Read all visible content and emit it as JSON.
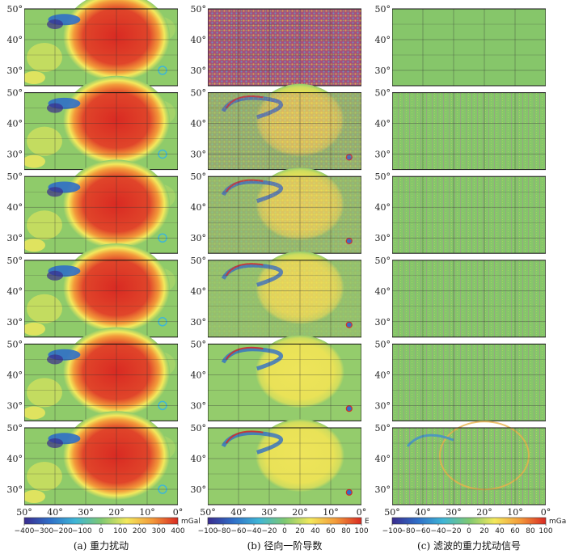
{
  "chart_data": {
    "type": "heatmap",
    "layout": {
      "rows": 6,
      "columns": 3
    },
    "x_ticks": [
      "50°",
      "40°",
      "30°",
      "20°",
      "10°",
      "0°"
    ],
    "y_ticks": [
      "50°",
      "40°",
      "30°"
    ],
    "xlim": [
      50,
      0
    ],
    "ylim": [
      25,
      50
    ],
    "grid": true,
    "panels": [
      {
        "caption": "(a)  重力扰动",
        "colorbar": {
          "ticks": [
            "−400",
            "−300",
            "−200",
            "−100",
            "0",
            "100",
            "200",
            "300",
            "400"
          ],
          "unit": "mGal",
          "range": [
            -400,
            400
          ]
        },
        "palette": [
          "#3a2c8f",
          "#2f6fc8",
          "#3fb6d6",
          "#7ec872",
          "#f3e85c",
          "#f39a3a",
          "#d92a22"
        ],
        "field": "gravity",
        "anomaly": {
          "center_lon": 20,
          "center_lat": 41,
          "peak_mgal": 380
        },
        "crater": {
          "center_lon": 37,
          "center_lat": 45,
          "min_mgal": -300
        }
      },
      {
        "caption": "(b)  径向一阶导数",
        "colorbar": {
          "ticks": [
            "−100",
            "−80",
            "−60",
            "−40",
            "−20",
            "0",
            "20",
            "40",
            "60",
            "80",
            "100"
          ],
          "unit": "E",
          "range": [
            -100,
            100
          ]
        },
        "palette": [
          "#3a2c8f",
          "#2f6fc8",
          "#3fb6d6",
          "#7ec872",
          "#f3e85c",
          "#f39a3a",
          "#d92a22"
        ],
        "field": "derivative"
      },
      {
        "caption": "(c)  滤波的重力扰动信号",
        "colorbar": {
          "ticks": [
            "−100",
            "−80",
            "−60",
            "−40",
            "−20",
            "0",
            "20",
            "40",
            "60",
            "80",
            "100"
          ],
          "unit": "mGal",
          "range": [
            -100,
            100
          ]
        },
        "palette": [
          "#3a2c8f",
          "#2f6fc8",
          "#3fb6d6",
          "#7ec872",
          "#f3e85c",
          "#f39a3a",
          "#d92a22"
        ],
        "field": "filtered"
      }
    ]
  }
}
